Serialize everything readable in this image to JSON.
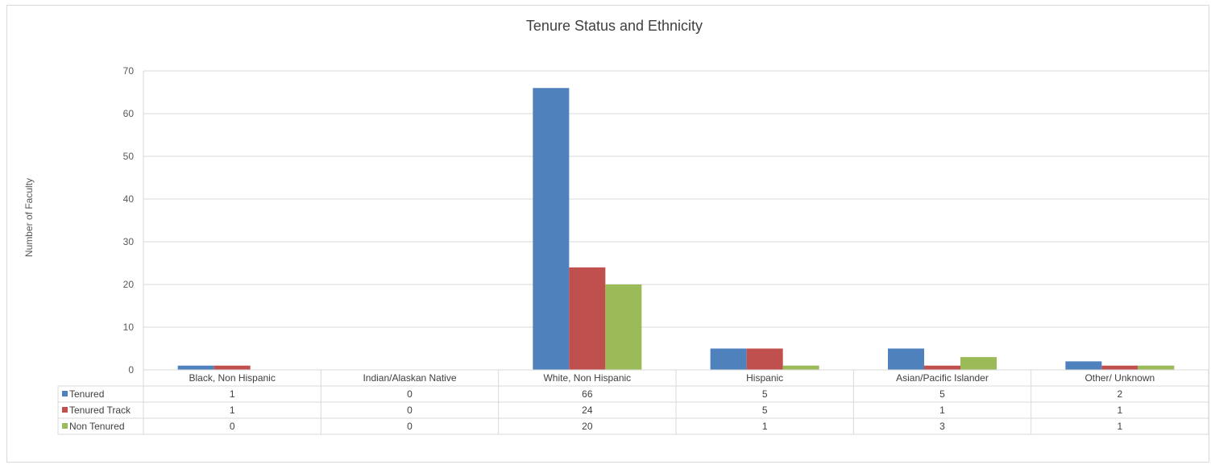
{
  "chart_data": {
    "type": "bar",
    "title": "Tenure Status and Ethnicity",
    "xlabel": "",
    "ylabel": "Number of Faculty",
    "ylim": [
      0,
      70
    ],
    "yticks": [
      0,
      10,
      20,
      30,
      40,
      50,
      60,
      70
    ],
    "grid": true,
    "legend": "data-table",
    "categories": [
      "Black, Non Hispanic",
      "Indian/Alaskan Native",
      "White, Non Hispanic",
      "Hispanic",
      "Asian/Pacific Islander",
      "Other/ Unknown"
    ],
    "series": [
      {
        "name": "Tenured",
        "color": "#4f81bd",
        "values": [
          1,
          0,
          66,
          5,
          5,
          2
        ]
      },
      {
        "name": "Tenured Track",
        "color": "#c0504d",
        "values": [
          1,
          0,
          24,
          5,
          1,
          1
        ]
      },
      {
        "name": "Non Tenured",
        "color": "#9bbb59",
        "values": [
          0,
          0,
          20,
          1,
          3,
          1
        ]
      }
    ]
  }
}
